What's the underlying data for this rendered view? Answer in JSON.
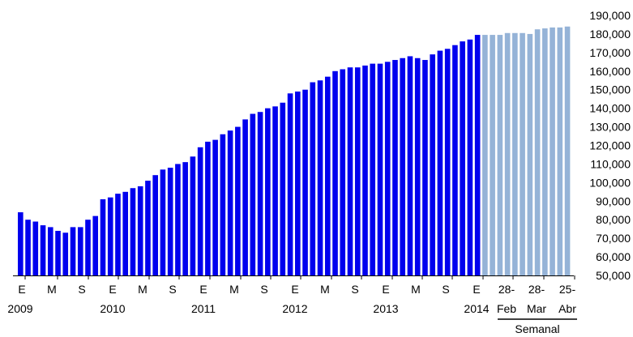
{
  "chart_data": {
    "type": "bar",
    "title": "",
    "xlabel": "",
    "ylabel": "",
    "ylim": [
      50000,
      190000
    ],
    "yticks": [
      50000,
      60000,
      70000,
      80000,
      90000,
      100000,
      110000,
      120000,
      130000,
      140000,
      150000,
      160000,
      170000,
      180000,
      190000
    ],
    "y_tick_labels": [
      "50,000",
      "60,000",
      "70,000",
      "80,000",
      "90,000",
      "100,000",
      "110,000",
      "120,000",
      "130,000",
      "140,000",
      "150,000",
      "160,000",
      "170,000",
      "180,000",
      "190,000"
    ],
    "grid": false,
    "legend": false,
    "series": [
      {
        "color": "#0000ee",
        "values": [
          84000,
          80000,
          79000,
          77000,
          76000,
          74000,
          73000,
          76000,
          76000,
          80000,
          82000,
          91000,
          92000,
          94000,
          95000,
          97000,
          98000,
          101000,
          104000,
          107000,
          108000,
          110000,
          111000,
          114000,
          119000,
          122000,
          123000,
          126000,
          128000,
          130000,
          134000,
          137000,
          138000,
          140000,
          141000,
          143000,
          148000,
          149000,
          150000,
          154000,
          155000,
          157000,
          160000,
          161000,
          162000,
          162000,
          163000,
          164000,
          164000,
          165000,
          166000,
          167000,
          168000,
          167000,
          166000,
          169000,
          171000,
          172000,
          174000,
          176000,
          177000,
          179500
        ]
      },
      {
        "color": "#95b3d7",
        "values": [
          179500,
          179500,
          179500,
          180500,
          180500,
          180500,
          180000,
          182500,
          183000,
          183500,
          183500,
          184000
        ]
      }
    ],
    "x_tick_labels": [
      {
        "line1": "E",
        "line2": "2009"
      },
      {
        "line1": "M",
        "line2": ""
      },
      {
        "line1": "S",
        "line2": ""
      },
      {
        "line1": "E",
        "line2": "2010"
      },
      {
        "line1": "M",
        "line2": ""
      },
      {
        "line1": "S",
        "line2": ""
      },
      {
        "line1": "E",
        "line2": "2011"
      },
      {
        "line1": "M",
        "line2": ""
      },
      {
        "line1": "S",
        "line2": ""
      },
      {
        "line1": "E",
        "line2": "2012"
      },
      {
        "line1": "M",
        "line2": ""
      },
      {
        "line1": "S",
        "line2": ""
      },
      {
        "line1": "E",
        "line2": "2013"
      },
      {
        "line1": "M",
        "line2": ""
      },
      {
        "line1": "S",
        "line2": ""
      },
      {
        "line1": "E",
        "line2": "2014"
      },
      {
        "line1": "28-",
        "line2": "Feb"
      },
      {
        "line1": "28-",
        "line2": "Mar"
      },
      {
        "line1": "25-",
        "line2": "Abr"
      }
    ],
    "group_label": "Semanal"
  }
}
